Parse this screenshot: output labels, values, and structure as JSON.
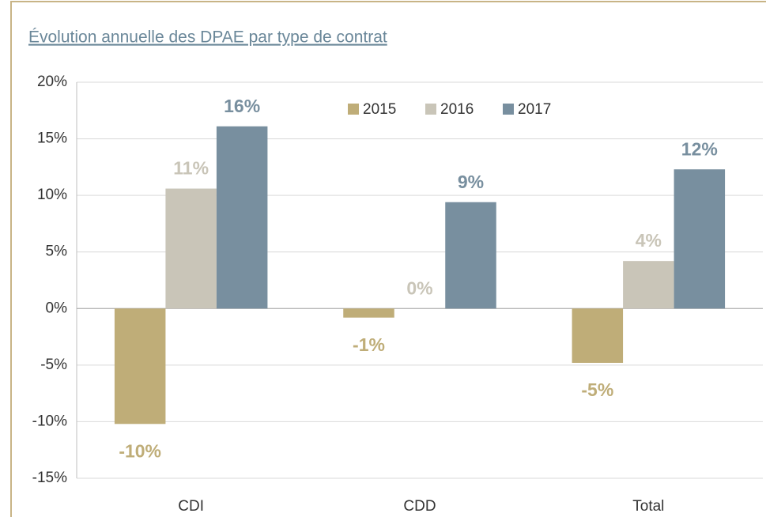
{
  "chart_data": {
    "type": "bar",
    "title": "Évolution annuelle des DPAE par type de contrat",
    "categories": [
      "CDI",
      "CDD",
      "Total"
    ],
    "series": [
      {
        "name": "2015",
        "color": "#bfad78",
        "values": [
          -10.2,
          -0.8,
          -4.8
        ],
        "value_labels": [
          "-10%",
          "-1%",
          "-5%"
        ]
      },
      {
        "name": "2016",
        "color": "#c9c5b8",
        "values": [
          10.6,
          0,
          4.2
        ],
        "value_labels": [
          "11%",
          "0%",
          "4%"
        ]
      },
      {
        "name": "2017",
        "color": "#788f9f",
        "values": [
          16.1,
          9.4,
          12.3
        ],
        "value_labels": [
          "16%",
          "9%",
          "12%"
        ]
      }
    ],
    "ylim": [
      -15,
      20
    ],
    "yticks": [
      {
        "value": -15,
        "label": "-15%"
      },
      {
        "value": -10,
        "label": "-10%"
      },
      {
        "value": -5,
        "label": "-5%"
      },
      {
        "value": 0,
        "label": "0%"
      },
      {
        "value": 5,
        "label": "5%"
      },
      {
        "value": 10,
        "label": "10%"
      },
      {
        "value": 15,
        "label": "15%"
      },
      {
        "value": 20,
        "label": "20%"
      }
    ],
    "grid": true,
    "legend": "top"
  }
}
